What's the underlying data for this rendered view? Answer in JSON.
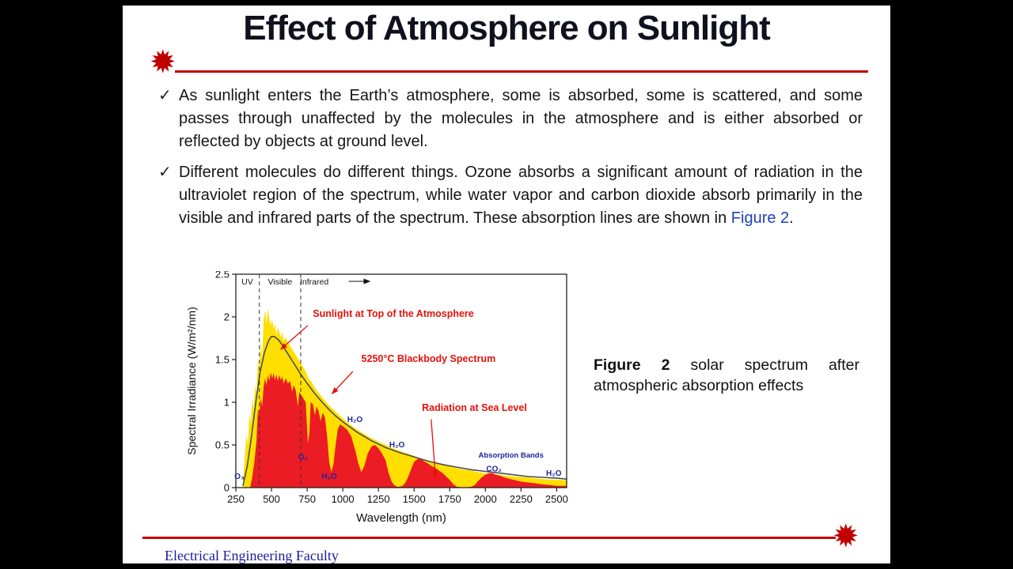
{
  "slide": {
    "title": "Effect of Atmosphere on Sunlight",
    "bullets": [
      {
        "marker": "✓",
        "text": "As sunlight enters the Earth’s atmosphere, some is absorbed, some is scattered, and some passes through unaffected by the molecules in the atmosphere and is either absorbed or reflected by objects at ground level."
      },
      {
        "marker": "✓",
        "text_before": "Different molecules do different things. Ozone absorbs a significant amount of radiation in the ultraviolet region of the spectrum, while water vapor and carbon dioxide absorb primarily in the visible and infrared parts of the spectrum. These absorption lines are shown in ",
        "link_text": "Figure 2",
        "text_after": "."
      }
    ],
    "caption": {
      "label": "Figure 2",
      "text": " solar spectrum after atmospheric absorption effects"
    },
    "footer": "Electrical Engineering Faculty",
    "icons": {
      "starburst": "✹"
    },
    "colors": {
      "accent_red": "#c00000",
      "link_blue": "#1f3fbf",
      "footer_blue": "#1b1b9e"
    }
  },
  "chart_data": {
    "type": "area",
    "title": "",
    "xlabel": "Wavelength (nm)",
    "ylabel": "Spectral Irradiance (W/m²/nm)",
    "xlim": [
      250,
      2570
    ],
    "ylim": [
      0,
      2.5
    ],
    "xticks": [
      250,
      500,
      750,
      1000,
      1250,
      1500,
      1750,
      2000,
      2250,
      2500
    ],
    "yticks": [
      [
        0,
        "0"
      ],
      [
        0.5,
        "0.5"
      ],
      [
        1,
        "1"
      ],
      [
        1.5,
        "1.5"
      ],
      [
        2,
        "2"
      ],
      [
        2.5,
        "2.5"
      ]
    ],
    "grid": false,
    "legend": "none",
    "region_dividers": [
      415,
      705
    ],
    "region_labels": [
      {
        "text": "UV",
        "x": 330
      },
      {
        "text": "Visible",
        "x": 560
      },
      {
        "text": "Infrared",
        "x": 800
      }
    ],
    "infrared_arrow": [
      1040,
      1190
    ],
    "series": [
      {
        "id": "top_of_atmosphere",
        "name": "Sunlight at Top of the Atmosphere",
        "type": "area",
        "color": "#ffdf00",
        "points": [
          [
            300,
            0.05
          ],
          [
            315,
            0.4
          ],
          [
            325,
            0.62
          ],
          [
            335,
            0.5
          ],
          [
            345,
            0.85
          ],
          [
            355,
            0.75
          ],
          [
            365,
            1.05
          ],
          [
            375,
            0.9
          ],
          [
            385,
            1.2
          ],
          [
            395,
            1.1
          ],
          [
            405,
            1.5
          ],
          [
            415,
            1.38
          ],
          [
            425,
            1.72
          ],
          [
            435,
            1.5
          ],
          [
            445,
            1.95
          ],
          [
            455,
            2.08
          ],
          [
            465,
            1.92
          ],
          [
            475,
            2.1
          ],
          [
            485,
            1.98
          ],
          [
            495,
            1.9
          ],
          [
            505,
            1.97
          ],
          [
            515,
            1.86
          ],
          [
            525,
            1.92
          ],
          [
            535,
            1.78
          ],
          [
            545,
            1.88
          ],
          [
            555,
            1.82
          ],
          [
            565,
            1.76
          ],
          [
            575,
            1.82
          ],
          [
            585,
            1.72
          ],
          [
            600,
            1.76
          ],
          [
            615,
            1.7
          ],
          [
            630,
            1.66
          ],
          [
            645,
            1.62
          ],
          [
            660,
            1.58
          ],
          [
            675,
            1.54
          ],
          [
            690,
            1.5
          ],
          [
            705,
            1.46
          ],
          [
            720,
            1.42
          ],
          [
            740,
            1.36
          ],
          [
            760,
            1.28
          ],
          [
            780,
            1.24
          ],
          [
            800,
            1.18
          ],
          [
            825,
            1.12
          ],
          [
            850,
            1.07
          ],
          [
            875,
            1.02
          ],
          [
            900,
            0.97
          ],
          [
            925,
            0.93
          ],
          [
            950,
            0.89
          ],
          [
            975,
            0.85
          ],
          [
            1000,
            0.81
          ],
          [
            1050,
            0.74
          ],
          [
            1100,
            0.68
          ],
          [
            1150,
            0.63
          ],
          [
            1200,
            0.58
          ],
          [
            1250,
            0.54
          ],
          [
            1300,
            0.5
          ],
          [
            1350,
            0.46
          ],
          [
            1400,
            0.43
          ],
          [
            1450,
            0.4
          ],
          [
            1500,
            0.37
          ],
          [
            1550,
            0.34
          ],
          [
            1600,
            0.31
          ],
          [
            1650,
            0.29
          ],
          [
            1700,
            0.27
          ],
          [
            1750,
            0.25
          ],
          [
            1800,
            0.23
          ],
          [
            1850,
            0.21
          ],
          [
            1900,
            0.2
          ],
          [
            1950,
            0.18
          ],
          [
            2000,
            0.17
          ],
          [
            2100,
            0.15
          ],
          [
            2200,
            0.13
          ],
          [
            2300,
            0.12
          ],
          [
            2400,
            0.1
          ],
          [
            2500,
            0.09
          ],
          [
            2570,
            0.085
          ]
        ]
      },
      {
        "id": "sea_level",
        "name": "Radiation at Sea Level",
        "type": "area",
        "color": "#ec1c24",
        "points": [
          [
            350,
            0.0
          ],
          [
            365,
            0.12
          ],
          [
            380,
            0.3
          ],
          [
            395,
            0.55
          ],
          [
            405,
            0.92
          ],
          [
            415,
            0.85
          ],
          [
            425,
            1.05
          ],
          [
            435,
            0.95
          ],
          [
            445,
            1.18
          ],
          [
            455,
            1.28
          ],
          [
            465,
            1.2
          ],
          [
            475,
            1.32
          ],
          [
            485,
            1.25
          ],
          [
            495,
            1.35
          ],
          [
            505,
            1.28
          ],
          [
            515,
            1.34
          ],
          [
            525,
            1.26
          ],
          [
            535,
            1.32
          ],
          [
            545,
            1.25
          ],
          [
            555,
            1.32
          ],
          [
            565,
            1.26
          ],
          [
            575,
            1.3
          ],
          [
            585,
            1.22
          ],
          [
            600,
            1.28
          ],
          [
            615,
            1.22
          ],
          [
            630,
            1.25
          ],
          [
            645,
            1.12
          ],
          [
            655,
            1.2
          ],
          [
            670,
            1.14
          ],
          [
            685,
            0.95
          ],
          [
            695,
            1.12
          ],
          [
            710,
            1.08
          ],
          [
            725,
            1.04
          ],
          [
            740,
            1.0
          ],
          [
            755,
            0.52
          ],
          [
            765,
            0.62
          ],
          [
            775,
            1.0
          ],
          [
            790,
            0.98
          ],
          [
            805,
            0.85
          ],
          [
            815,
            0.95
          ],
          [
            830,
            0.9
          ],
          [
            845,
            0.78
          ],
          [
            860,
            0.88
          ],
          [
            875,
            0.82
          ],
          [
            890,
            0.6
          ],
          [
            905,
            0.3
          ],
          [
            920,
            0.18
          ],
          [
            935,
            0.28
          ],
          [
            950,
            0.5
          ],
          [
            965,
            0.68
          ],
          [
            980,
            0.74
          ],
          [
            1000,
            0.72
          ],
          [
            1030,
            0.68
          ],
          [
            1060,
            0.6
          ],
          [
            1090,
            0.42
          ],
          [
            1110,
            0.28
          ],
          [
            1130,
            0.18
          ],
          [
            1150,
            0.25
          ],
          [
            1175,
            0.4
          ],
          [
            1200,
            0.48
          ],
          [
            1225,
            0.5
          ],
          [
            1250,
            0.46
          ],
          [
            1275,
            0.4
          ],
          [
            1300,
            0.32
          ],
          [
            1320,
            0.18
          ],
          [
            1340,
            0.08
          ],
          [
            1360,
            0.03
          ],
          [
            1380,
            0.01
          ],
          [
            1400,
            0.01
          ],
          [
            1420,
            0.02
          ],
          [
            1440,
            0.06
          ],
          [
            1460,
            0.13
          ],
          [
            1480,
            0.22
          ],
          [
            1500,
            0.3
          ],
          [
            1520,
            0.33
          ],
          [
            1540,
            0.34
          ],
          [
            1560,
            0.32
          ],
          [
            1580,
            0.3
          ],
          [
            1600,
            0.28
          ],
          [
            1625,
            0.25
          ],
          [
            1650,
            0.23
          ],
          [
            1675,
            0.2
          ],
          [
            1700,
            0.17
          ],
          [
            1725,
            0.13
          ],
          [
            1750,
            0.09
          ],
          [
            1775,
            0.04
          ],
          [
            1800,
            0.01
          ],
          [
            1850,
            0.0
          ],
          [
            1900,
            0.01
          ],
          [
            1925,
            0.03
          ],
          [
            1950,
            0.08
          ],
          [
            1975,
            0.12
          ],
          [
            2000,
            0.15
          ],
          [
            2025,
            0.17
          ],
          [
            2050,
            0.17
          ],
          [
            2075,
            0.15
          ],
          [
            2100,
            0.14
          ],
          [
            2150,
            0.11
          ],
          [
            2200,
            0.09
          ],
          [
            2250,
            0.07
          ],
          [
            2300,
            0.06
          ],
          [
            2350,
            0.05
          ],
          [
            2400,
            0.04
          ],
          [
            2450,
            0.03
          ],
          [
            2500,
            0.02
          ],
          [
            2570,
            0.02
          ]
        ]
      },
      {
        "id": "blackbody",
        "name": "5250°C Blackbody Spectrum",
        "type": "line",
        "color": "#4d4d4d",
        "points": [
          [
            300,
            0.02
          ],
          [
            330,
            0.25
          ],
          [
            360,
            0.6
          ],
          [
            390,
            1.0
          ],
          [
            420,
            1.35
          ],
          [
            450,
            1.58
          ],
          [
            480,
            1.72
          ],
          [
            500,
            1.77
          ],
          [
            520,
            1.77
          ],
          [
            550,
            1.73
          ],
          [
            580,
            1.66
          ],
          [
            610,
            1.58
          ],
          [
            640,
            1.5
          ],
          [
            670,
            1.42
          ],
          [
            700,
            1.34
          ],
          [
            750,
            1.22
          ],
          [
            800,
            1.11
          ],
          [
            850,
            1.01
          ],
          [
            900,
            0.92
          ],
          [
            950,
            0.84
          ],
          [
            1000,
            0.77
          ],
          [
            1100,
            0.65
          ],
          [
            1200,
            0.55
          ],
          [
            1300,
            0.47
          ],
          [
            1400,
            0.41
          ],
          [
            1500,
            0.36
          ],
          [
            1600,
            0.31
          ],
          [
            1700,
            0.27
          ],
          [
            1800,
            0.24
          ],
          [
            1900,
            0.21
          ],
          [
            2000,
            0.19
          ],
          [
            2100,
            0.17
          ],
          [
            2200,
            0.15
          ],
          [
            2300,
            0.13
          ],
          [
            2400,
            0.12
          ],
          [
            2500,
            0.11
          ],
          [
            2570,
            0.1
          ]
        ]
      }
    ],
    "annotations": [
      {
        "text": "Sunlight at Top of the Atmosphere",
        "x": 790,
        "y": 2.0,
        "anchor": "start",
        "style": "red",
        "arrow": {
          "from": [
            755,
            1.9
          ],
          "to": [
            565,
            1.62
          ]
        }
      },
      {
        "text": "5250°C Blackbody Spectrum",
        "x": 1130,
        "y": 1.47,
        "anchor": "start",
        "style": "red",
        "arrow": {
          "from": [
            1070,
            1.36
          ],
          "to": [
            925,
            1.1
          ]
        }
      },
      {
        "text": "Radiation at Sea Level",
        "x": 1555,
        "y": 0.9,
        "anchor": "start",
        "style": "red",
        "arrow": {
          "from": [
            1620,
            0.8
          ],
          "to": [
            1650,
            0.12
          ]
        }
      },
      {
        "text": "O₃",
        "x": 275,
        "y": 0.1,
        "style": "navy"
      },
      {
        "text": "O₂",
        "x": 722,
        "y": 0.33,
        "style": "navy"
      },
      {
        "text": "H₂O",
        "x": 905,
        "y": 0.1,
        "style": "navy"
      },
      {
        "text": "H₂O",
        "x": 1085,
        "y": 0.77,
        "style": "navy"
      },
      {
        "text": "H₂O",
        "x": 1380,
        "y": 0.47,
        "style": "navy"
      },
      {
        "text": "Absorption Bands",
        "x": 2180,
        "y": 0.35,
        "style": "navysm"
      },
      {
        "text": "CO₂",
        "x": 2060,
        "y": 0.19,
        "style": "navy"
      },
      {
        "text": "H₂O",
        "x": 2480,
        "y": 0.14,
        "style": "navy"
      }
    ]
  }
}
